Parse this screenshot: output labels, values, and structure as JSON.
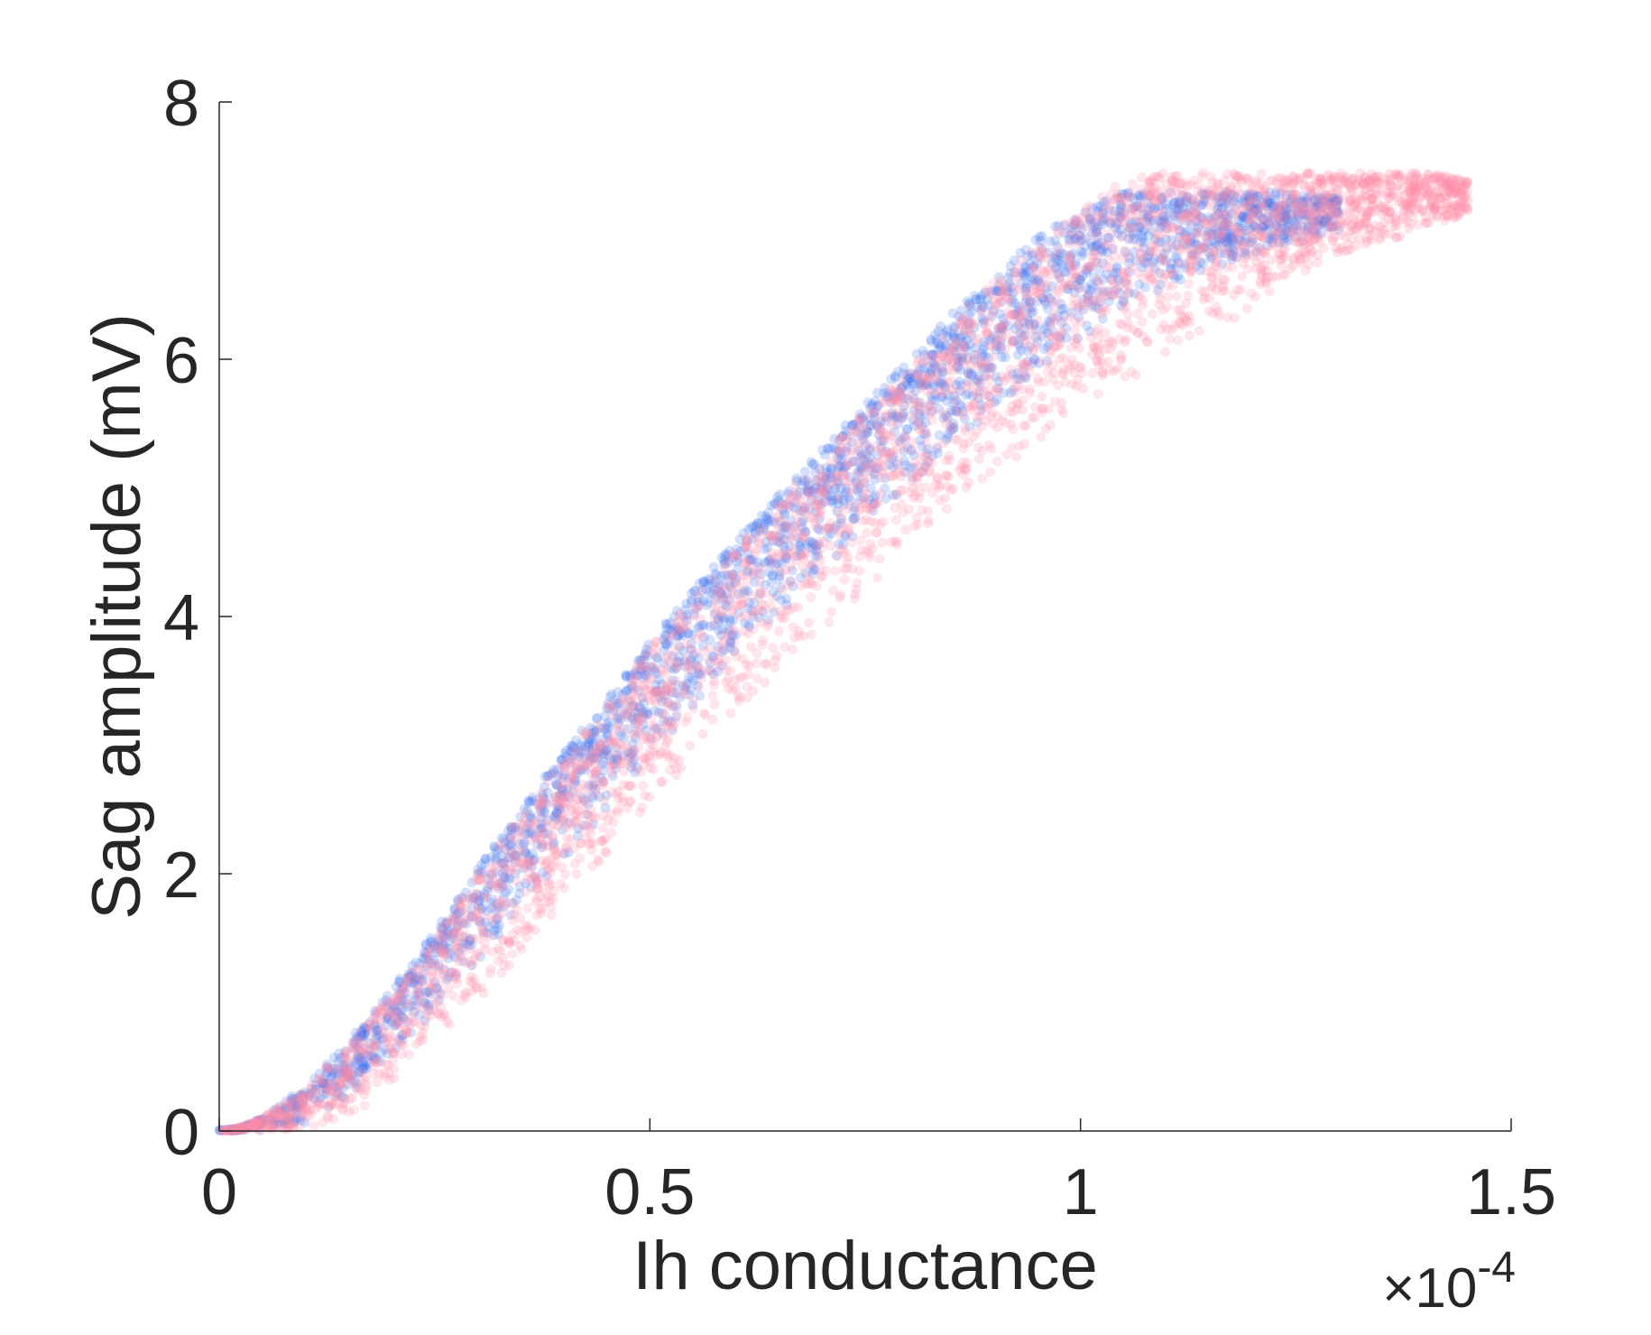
{
  "chart_data": {
    "type": "scatter",
    "xlabel": "Ih conductance",
    "ylabel": "Sag amplitude (mV)",
    "x_exponent_label": "×10",
    "x_exponent_power": "-4",
    "xlim": [
      0,
      1.5
    ],
    "ylim": [
      0,
      8
    ],
    "x_ticks": [
      "0",
      "0.5",
      "1",
      "1.5"
    ],
    "y_ticks": [
      "0",
      "2",
      "4",
      "6",
      "8"
    ],
    "grid": false,
    "colors": {
      "series_blue": "#3b74f0",
      "series_pink": "#ff8fa8",
      "axis": "#262626"
    },
    "series": [
      {
        "color_key": "series_blue",
        "x": [
          0.005,
          0.02,
          0.05,
          0.1,
          0.15,
          0.2,
          0.25,
          0.3,
          0.35,
          0.4,
          0.45,
          0.5,
          0.55,
          0.6,
          0.65,
          0.7,
          0.75,
          0.8,
          0.85,
          0.9,
          0.95,
          1.0,
          1.05,
          1.1,
          1.15,
          1.2,
          1.25,
          1.3
        ],
        "y_upper": [
          0.01,
          0.02,
          0.1,
          0.35,
          0.7,
          1.1,
          1.55,
          2.05,
          2.5,
          2.95,
          3.35,
          3.8,
          4.2,
          4.6,
          4.95,
          5.3,
          5.65,
          6.0,
          6.35,
          6.65,
          6.95,
          7.15,
          7.3,
          7.3,
          7.3,
          7.3,
          7.3,
          7.25
        ],
        "y_lower": [
          0.0,
          0.0,
          0.0,
          0.05,
          0.25,
          0.55,
          0.9,
          1.3,
          1.7,
          2.1,
          2.5,
          2.9,
          3.3,
          3.7,
          4.0,
          4.35,
          4.7,
          5.0,
          5.35,
          5.6,
          5.9,
          6.15,
          6.4,
          6.55,
          6.7,
          6.8,
          6.9,
          7.0
        ]
      },
      {
        "color_key": "series_pink",
        "x": [
          0.005,
          0.02,
          0.05,
          0.1,
          0.15,
          0.2,
          0.25,
          0.3,
          0.35,
          0.4,
          0.45,
          0.5,
          0.55,
          0.6,
          0.65,
          0.7,
          0.75,
          0.8,
          0.85,
          0.9,
          0.95,
          1.0,
          1.05,
          1.1,
          1.15,
          1.2,
          1.25,
          1.3,
          1.35,
          1.4,
          1.45
        ],
        "y_upper": [
          0.01,
          0.02,
          0.1,
          0.33,
          0.68,
          1.05,
          1.5,
          2.0,
          2.45,
          2.9,
          3.3,
          3.75,
          4.15,
          4.55,
          4.9,
          5.25,
          5.6,
          5.95,
          6.3,
          6.6,
          6.9,
          7.15,
          7.4,
          7.45,
          7.45,
          7.45,
          7.45,
          7.45,
          7.45,
          7.45,
          7.4
        ],
        "y_lower": [
          0.0,
          0.0,
          0.0,
          0.0,
          0.1,
          0.35,
          0.65,
          1.0,
          1.35,
          1.75,
          2.1,
          2.5,
          2.85,
          3.2,
          3.55,
          3.9,
          4.2,
          4.55,
          4.85,
          5.1,
          5.35,
          5.6,
          5.8,
          6.0,
          6.2,
          6.4,
          6.6,
          6.8,
          6.9,
          7.0,
          7.1
        ]
      }
    ]
  }
}
